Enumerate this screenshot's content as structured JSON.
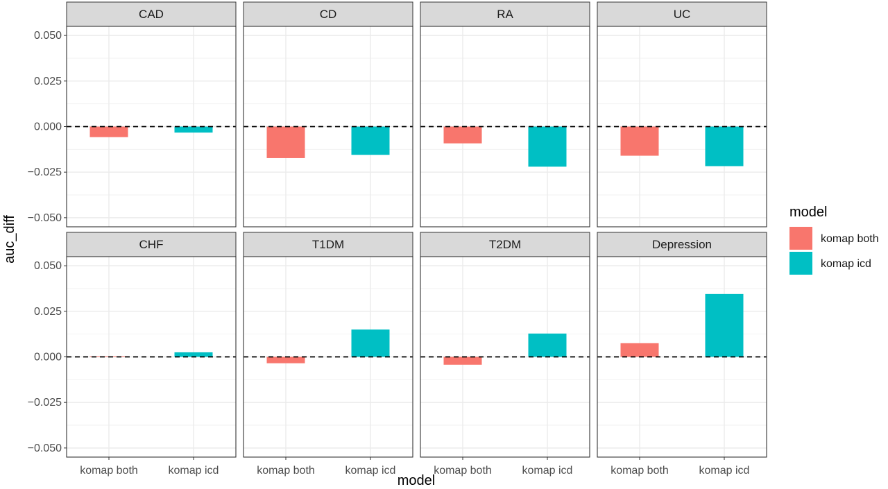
{
  "chart_data": {
    "type": "bar",
    "facet_layout": "2 rows x 4 columns",
    "xlabel": "model",
    "ylabel": "auc_diff",
    "categories": [
      "komap both",
      "komap icd"
    ],
    "ylim": [
      -0.055,
      0.055
    ],
    "y_ticks": [
      "-0.050",
      "-0.025",
      "0.000",
      "0.025",
      "0.050"
    ],
    "grid": true,
    "reference_line": {
      "y": 0,
      "style": "dashed"
    },
    "legend": {
      "title": "model",
      "placement": "right",
      "entries": [
        {
          "label": "komap both",
          "color": "#F8766D"
        },
        {
          "label": "komap icd",
          "color": "#00BFC4"
        }
      ]
    },
    "facets": [
      {
        "name": "CAD",
        "values": [
          -0.0058,
          -0.0033
        ]
      },
      {
        "name": "CD",
        "values": [
          -0.0173,
          -0.0155
        ]
      },
      {
        "name": "RA",
        "values": [
          -0.0092,
          -0.022
        ]
      },
      {
        "name": "UC",
        "values": [
          -0.016,
          -0.0217
        ]
      },
      {
        "name": "CHF",
        "values": [
          0.0003,
          0.0025
        ]
      },
      {
        "name": "T1DM",
        "values": [
          -0.0035,
          0.015
        ]
      },
      {
        "name": "T2DM",
        "values": [
          -0.0043,
          0.0128
        ]
      },
      {
        "name": "Depression",
        "values": [
          0.0075,
          0.0345
        ]
      }
    ]
  }
}
